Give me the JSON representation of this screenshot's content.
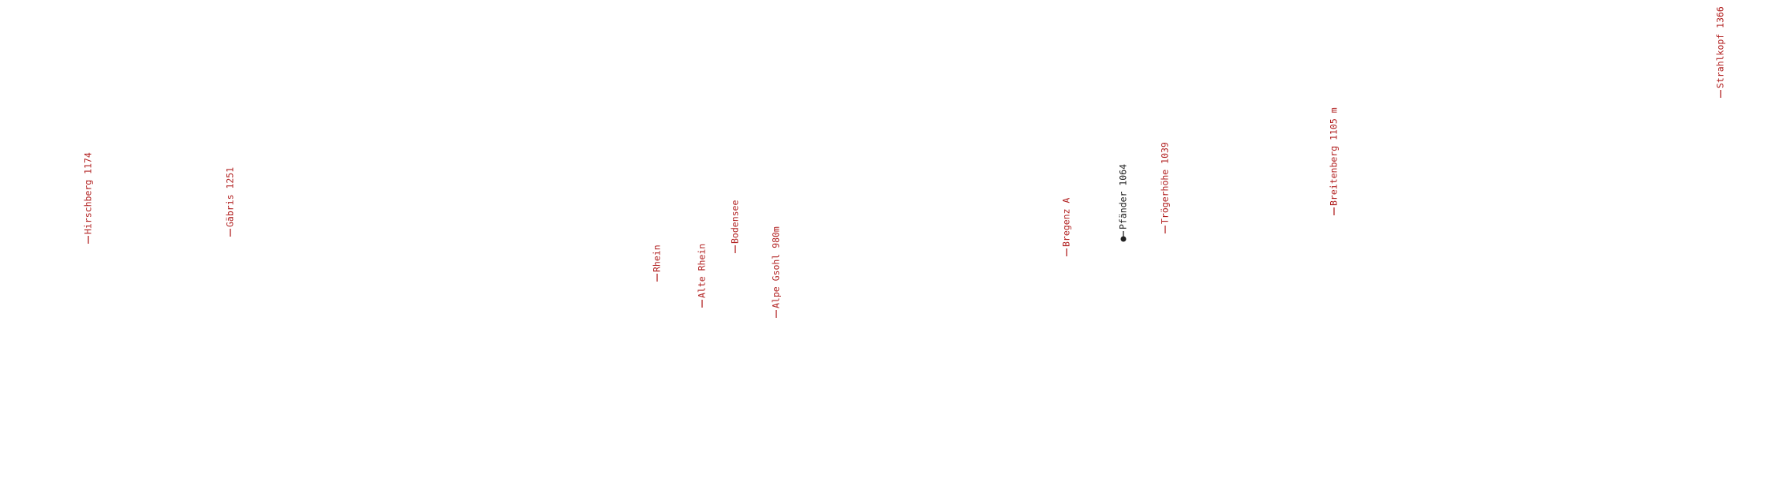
{
  "labels": [
    "Hirschberg 1174",
    "Gäbris 1251",
    "Rhein",
    "Alte Rhein",
    "Bodensee",
    "Alpe Gsohl 980m",
    "Bregenz A",
    "Pfänder 1064",
    "Trögerhöhe 1039",
    "Breitenberg 1105 m",
    "Strahlkopf 1366"
  ]
}
